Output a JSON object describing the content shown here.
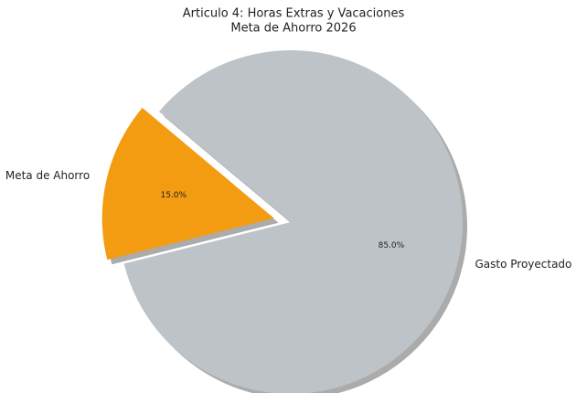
{
  "chart_data": {
    "type": "pie",
    "title": "Articulo 4: Horas Extras y Vacaciones",
    "subtitle": "Meta de Ahorro 2026",
    "categories": [
      "Meta de Ahorro",
      "Gasto Proyectado"
    ],
    "values": [
      15,
      85
    ],
    "value_labels": [
      "15.0%",
      "85.0%"
    ],
    "colors": [
      "#f39c12",
      "#bdc3c7"
    ]
  }
}
